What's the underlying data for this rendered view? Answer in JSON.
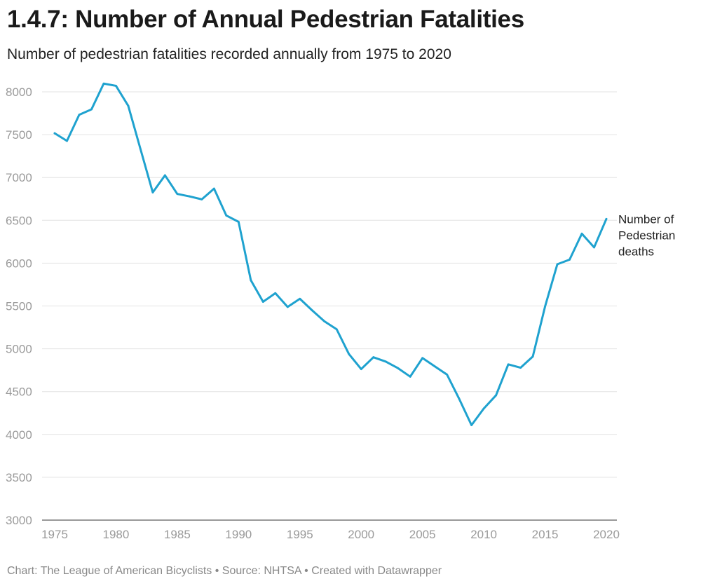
{
  "title": "1.4.7: Number of Annual Pedestrian Fatalities",
  "subtitle": "Number of pedestrian fatalities recorded annually from 1975 to 2020",
  "footer": "Chart: The League of American Bicyclists • Source: NHTSA • Created with Datawrapper",
  "colors": {
    "line": "#1fa2cf",
    "grid": "#e3e3e3",
    "tick_text": "#9a9a9a"
  },
  "chart_data": {
    "type": "line",
    "title": "1.4.7: Number of Annual Pedestrian Fatalities",
    "subtitle": "Number of pedestrian fatalities recorded annually from 1975 to 2020",
    "xlabel": "",
    "ylabel": "",
    "xlim": [
      1975,
      2020
    ],
    "ylim": [
      3000,
      8000
    ],
    "grid": true,
    "x_ticks": [
      1975,
      1980,
      1985,
      1990,
      1995,
      2000,
      2005,
      2010,
      2015,
      2020
    ],
    "y_ticks": [
      3000,
      3500,
      4000,
      4500,
      5000,
      5500,
      6000,
      6500,
      7000,
      7500,
      8000
    ],
    "series": [
      {
        "name": "Number of Pedestrian deaths",
        "label_lines": [
          "Number of",
          "Pedestrian",
          "deaths"
        ],
        "x": [
          1975,
          1976,
          1977,
          1978,
          1979,
          1980,
          1981,
          1982,
          1983,
          1984,
          1985,
          1986,
          1987,
          1988,
          1989,
          1990,
          1991,
          1992,
          1993,
          1994,
          1995,
          1996,
          1997,
          1998,
          1999,
          2000,
          2001,
          2002,
          2003,
          2004,
          2005,
          2006,
          2007,
          2008,
          2009,
          2010,
          2011,
          2012,
          2013,
          2014,
          2015,
          2016,
          2017,
          2018,
          2019,
          2020
        ],
        "values": [
          7516,
          7427,
          7732,
          7795,
          8096,
          8070,
          7837,
          7331,
          6826,
          7025,
          6808,
          6779,
          6745,
          6870,
          6556,
          6482,
          5801,
          5549,
          5649,
          5489,
          5584,
          5449,
          5321,
          5228,
          4939,
          4763,
          4901,
          4851,
          4774,
          4675,
          4892,
          4795,
          4699,
          4414,
          4109,
          4302,
          4457,
          4818,
          4779,
          4910,
          5494,
          5987,
          6041,
          6344,
          6184,
          6516
        ]
      }
    ]
  }
}
